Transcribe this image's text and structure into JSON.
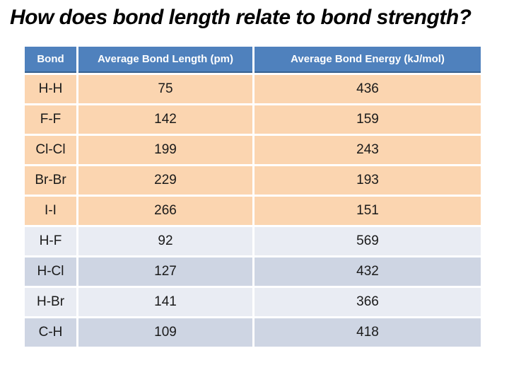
{
  "slide": {
    "title": "How does bond length relate to bond strength?"
  },
  "table": {
    "headers": [
      "Bond",
      "Average Bond Length (pm)",
      "Average Bond Energy (kJ/mol)"
    ],
    "rows": [
      {
        "bond": "H-H",
        "length": "75",
        "energy": "436",
        "shade": "peach"
      },
      {
        "bond": "F-F",
        "length": "142",
        "energy": "159",
        "shade": "peach"
      },
      {
        "bond": "Cl-Cl",
        "length": "199",
        "energy": "243",
        "shade": "peach"
      },
      {
        "bond": "Br-Br",
        "length": "229",
        "energy": "193",
        "shade": "peach"
      },
      {
        "bond": "I-I",
        "length": "266",
        "energy": "151",
        "shade": "peach"
      },
      {
        "bond": "H-F",
        "length": "92",
        "energy": "569",
        "shade": "blue-light"
      },
      {
        "bond": "H-Cl",
        "length": "127",
        "energy": "432",
        "shade": "blue-dark"
      },
      {
        "bond": "H-Br",
        "length": "141",
        "energy": "366",
        "shade": "blue-light"
      },
      {
        "bond": "C-H",
        "length": "109",
        "energy": "418",
        "shade": "blue-dark"
      }
    ],
    "colors": {
      "header_bg": "#4f81bd",
      "header_text": "#ffffff",
      "header_border": "#36618f",
      "peach": "#fbd5b0",
      "blue_light": "#e9ecf3",
      "blue_dark": "#ced5e3",
      "cell_text": "#1a1a1a"
    }
  }
}
